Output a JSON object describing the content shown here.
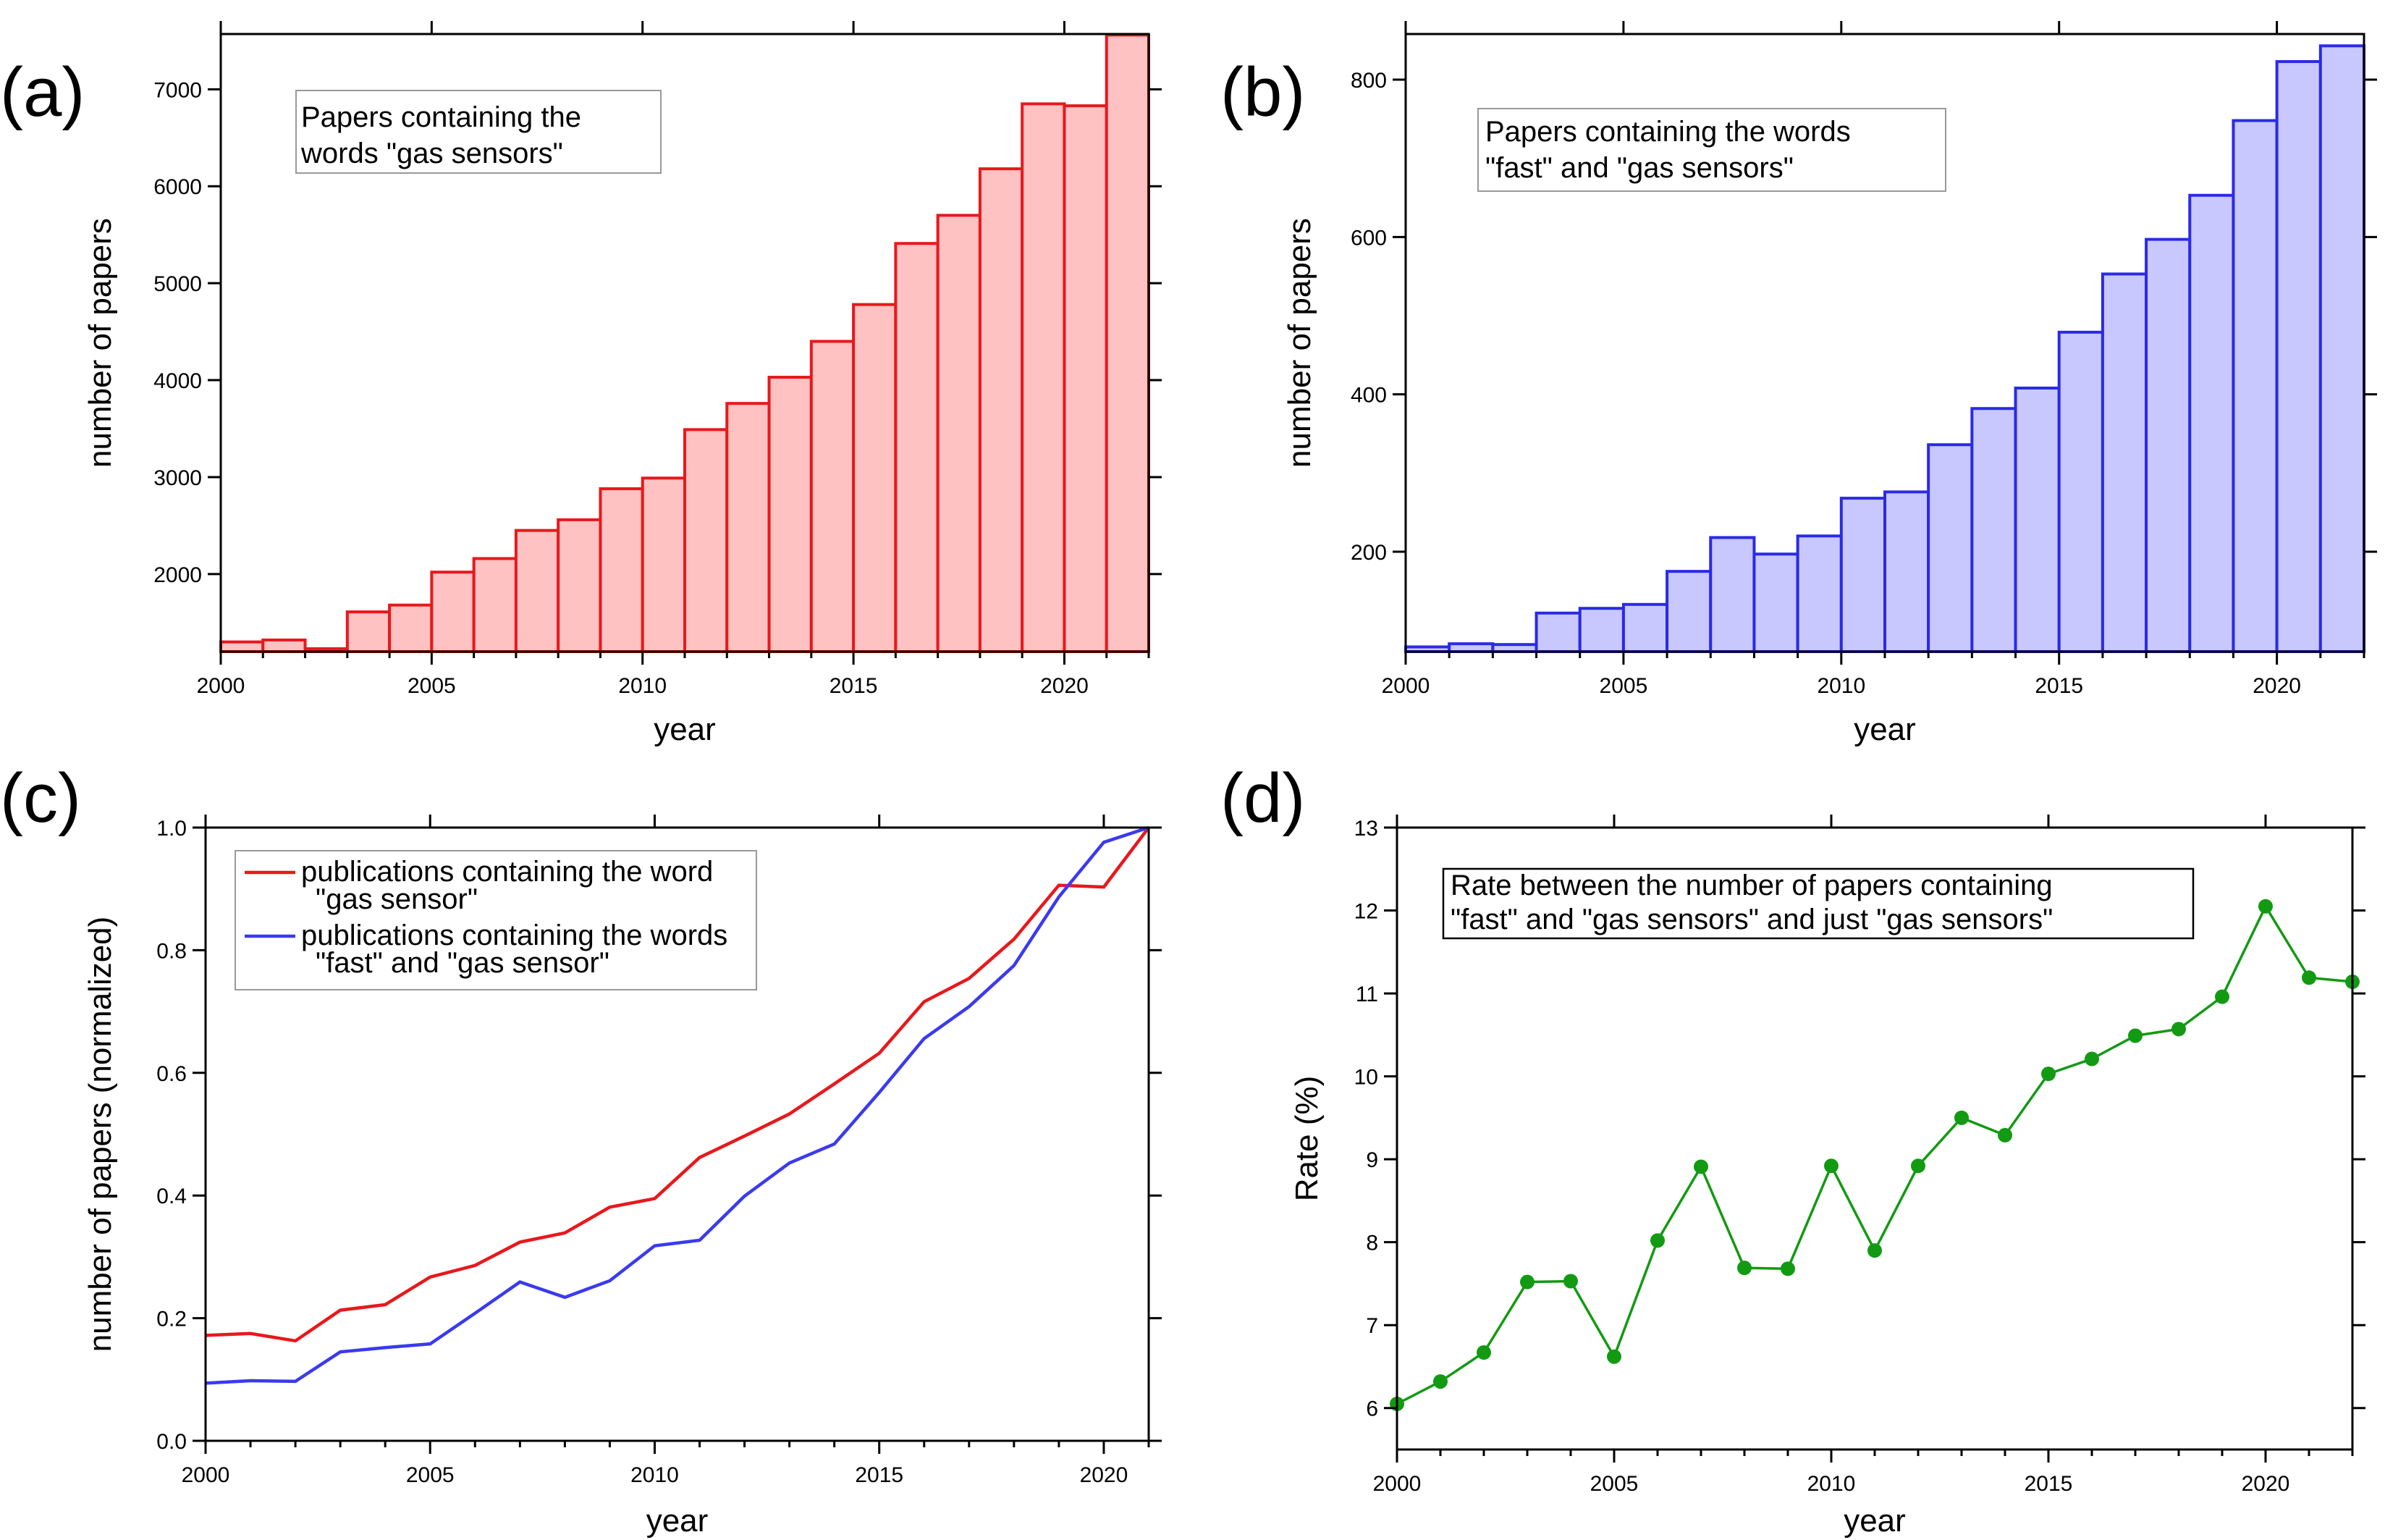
{
  "chart_data": [
    {
      "type": "bar",
      "panel_label": "(a)",
      "title": "",
      "annotation": [
        "Papers containing the",
        "words \"gas sensors\""
      ],
      "xlabel": "year",
      "ylabel": "number of papers",
      "x": [
        2000,
        2001,
        2002,
        2003,
        2004,
        2005,
        2006,
        2007,
        2008,
        2009,
        2010,
        2011,
        2012,
        2013,
        2014,
        2015,
        2016,
        2017,
        2018,
        2019,
        2020,
        2021
      ],
      "values": [
        1300,
        1320,
        1230,
        1610,
        1680,
        2020,
        2160,
        2450,
        2560,
        2880,
        2990,
        3490,
        3760,
        4030,
        4400,
        4780,
        5410,
        5700,
        6180,
        6850,
        6830,
        7560
      ],
      "xlim": [
        2000,
        2022
      ],
      "ylim": [
        1200,
        7570
      ],
      "xticks": [
        2000,
        2005,
        2010,
        2015,
        2020
      ],
      "yticks": [
        2000,
        3000,
        4000,
        5000,
        6000,
        7000
      ],
      "color": "#e8181c",
      "fill": "#ffc2c2"
    },
    {
      "type": "bar",
      "panel_label": "(b)",
      "title": "",
      "annotation": [
        "Papers containing the words",
        "\"fast\" and \"gas sensors\""
      ],
      "xlabel": "year",
      "ylabel": "number of papers",
      "x": [
        2000,
        2001,
        2002,
        2003,
        2004,
        2005,
        2006,
        2007,
        2008,
        2009,
        2010,
        2011,
        2012,
        2013,
        2014,
        2015,
        2016,
        2017,
        2018,
        2019,
        2020,
        2021
      ],
      "values": [
        79,
        83,
        82,
        122,
        128,
        133,
        175,
        218,
        197,
        220,
        268,
        276,
        336,
        382,
        408,
        479,
        553,
        597,
        653,
        748,
        823,
        843
      ],
      "xlim": [
        2000,
        2022
      ],
      "ylim": [
        73,
        858
      ],
      "xticks": [
        2000,
        2005,
        2010,
        2015,
        2020
      ],
      "yticks": [
        200,
        400,
        600,
        800
      ],
      "color": "#2a2ae8",
      "fill": "#c8c8ff"
    },
    {
      "type": "line",
      "panel_label": "(c)",
      "title": "",
      "xlabel": "year",
      "ylabel": "number of papers (normalized)",
      "xlim": [
        2000,
        2021
      ],
      "ylim": [
        0,
        1.0
      ],
      "xticks": [
        2000,
        2005,
        2010,
        2015,
        2020
      ],
      "yticks": [
        0.0,
        0.2,
        0.4,
        0.6,
        0.8,
        1.0
      ],
      "ytick_labels": [
        "0.0",
        "0.2",
        "0.4",
        "0.6",
        "0.8",
        "1.0"
      ],
      "x": [
        2000,
        2001,
        2002,
        2003,
        2004,
        2005,
        2006,
        2007,
        2008,
        2009,
        2010,
        2011,
        2012,
        2013,
        2014,
        2015,
        2016,
        2017,
        2018,
        2019,
        2020,
        2021
      ],
      "series": [
        {
          "name": "publications containing the word \"gas sensor\"",
          "legend_lines": [
            "publications containing the word",
            "\"gas sensor\""
          ],
          "color": "#e8181c",
          "values": [
            0.172,
            0.175,
            0.163,
            0.213,
            0.222,
            0.267,
            0.286,
            0.324,
            0.339,
            0.381,
            0.395,
            0.462,
            0.497,
            0.533,
            0.582,
            0.632,
            0.716,
            0.754,
            0.818,
            0.906,
            0.903,
            1.0
          ]
        },
        {
          "name": "publications containing the words \"fast\" and \"gas sensor\"",
          "legend_lines": [
            "publications containing the words",
            "\"fast\" and \"gas sensor\""
          ],
          "color": "#3a3af0",
          "values": [
            0.094,
            0.098,
            0.097,
            0.145,
            0.152,
            0.158,
            0.208,
            0.259,
            0.234,
            0.261,
            0.318,
            0.327,
            0.399,
            0.453,
            0.484,
            0.568,
            0.656,
            0.708,
            0.775,
            0.887,
            0.976,
            1.0
          ]
        }
      ]
    },
    {
      "type": "line",
      "panel_label": "(d)",
      "title": "",
      "annotation": [
        "Rate between the number of papers containing",
        "\"fast\" and \"gas sensors\" and just \"gas sensors\""
      ],
      "xlabel": "year",
      "ylabel": "Rate (%)",
      "xlim": [
        2000,
        2022
      ],
      "ylim": [
        5.5,
        13
      ],
      "xticks": [
        2000,
        2005,
        2010,
        2015,
        2020
      ],
      "yticks": [
        6,
        7,
        8,
        9,
        10,
        11,
        12,
        13
      ],
      "x": [
        2000,
        2001,
        2002,
        2003,
        2004,
        2005,
        2006,
        2007,
        2008,
        2009,
        2010,
        2011,
        2012,
        2013,
        2014,
        2015,
        2016,
        2017,
        2018,
        2019,
        2020,
        2021,
        2022
      ],
      "series": [
        {
          "name": "Rate",
          "color": "#129a12",
          "values": [
            6.05,
            6.32,
            6.67,
            7.52,
            7.53,
            6.62,
            8.02,
            8.91,
            7.69,
            7.68,
            8.92,
            7.9,
            8.92,
            9.5,
            9.29,
            10.03,
            10.21,
            10.49,
            10.57,
            10.96,
            12.05,
            11.19,
            11.14
          ]
        }
      ]
    }
  ]
}
